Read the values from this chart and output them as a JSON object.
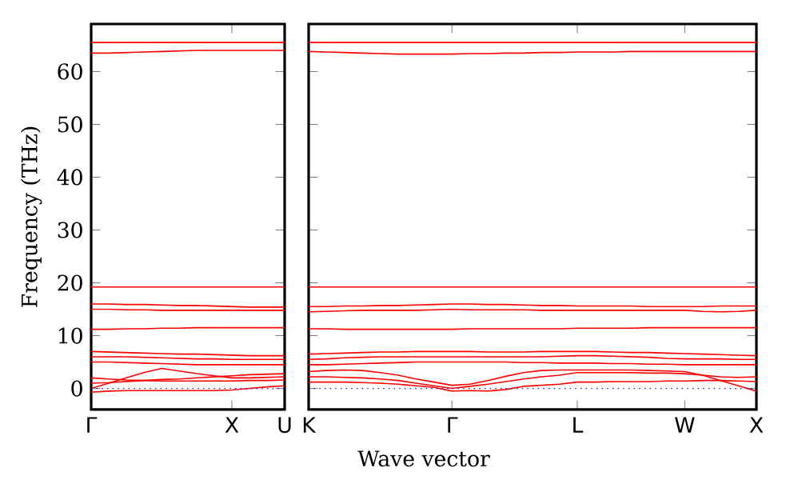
{
  "chart_data": [
    {
      "type": "line",
      "ylabel": "Frequency (THz)",
      "categories": [
        "Γ",
        null,
        null,
        null,
        null,
        null,
        null,
        null,
        "X",
        null,
        null,
        "U"
      ],
      "ylim": [
        -4,
        69
      ],
      "yticks": [
        0,
        10,
        20,
        30,
        40,
        50,
        60
      ],
      "ref_lines": [
        {
          "axis": "y",
          "value": 0,
          "color": "#0000ff",
          "line_style": "dotted"
        }
      ],
      "series": [
        {
          "color": "#ff0000",
          "values": [
            65.5,
            65.5,
            65.5,
            65.5,
            65.5,
            65.5,
            65.5,
            65.5,
            65.5,
            65.5,
            65.5,
            65.5
          ]
        },
        {
          "color": "#ff0000",
          "values": [
            63.5,
            63.5,
            63.6,
            63.7,
            63.8,
            63.9,
            64,
            64,
            64,
            64,
            64,
            64
          ]
        },
        {
          "color": "#ff0000",
          "values": [
            19.2,
            19.2,
            19.2,
            19.2,
            19.2,
            19.2,
            19.2,
            19.2,
            19.2,
            19.2,
            19.2,
            19.2
          ]
        },
        {
          "color": "#ff0000",
          "values": [
            16,
            16,
            15.9,
            15.9,
            15.8,
            15.7,
            15.7,
            15.6,
            15.5,
            15.4,
            15.4,
            15.4
          ]
        },
        {
          "color": "#ff0000",
          "values": [
            15,
            15,
            14.9,
            14.9,
            14.8,
            14.8,
            14.8,
            14.8,
            14.8,
            14.8,
            14.8,
            14.8
          ]
        },
        {
          "color": "#ff0000",
          "values": [
            11.2,
            11.2,
            11.3,
            11.3,
            11.4,
            11.4,
            11.5,
            11.5,
            11.5,
            11.5,
            11.5,
            11.5
          ]
        },
        {
          "color": "#ff0000",
          "values": [
            7,
            6.9,
            6.8,
            6.7,
            6.6,
            6.5,
            6.5,
            6.4,
            6.3,
            6.2,
            6.2,
            6.2
          ]
        },
        {
          "color": "#ff0000",
          "values": [
            6,
            6,
            6,
            5.9,
            5.8,
            5.7,
            5.6,
            5.6,
            5.5,
            5.5,
            5.5,
            5.5
          ]
        },
        {
          "color": "#ff0000",
          "values": [
            5,
            5,
            4.9,
            4.8,
            4.7,
            4.6,
            4.5,
            4.5,
            4.5,
            4.5,
            4.5,
            4.5
          ]
        },
        {
          "color": "#ff0000",
          "values": [
            0,
            1,
            2,
            3,
            3.8,
            3.3,
            2.8,
            2.4,
            2,
            2,
            2.1,
            2.2
          ]
        },
        {
          "color": "#ff0000",
          "values": [
            1,
            1.1,
            1.3,
            1.5,
            1.7,
            1.8,
            2,
            2.2,
            2.4,
            2.6,
            2.7,
            2.8
          ]
        },
        {
          "color": "#ff0000",
          "values": [
            -0.7,
            -0.5,
            -0.4,
            -0.4,
            -0.4,
            -0.4,
            -0.4,
            -0.4,
            -0.3,
            0,
            0.3,
            0.5
          ]
        },
        {
          "color": "#ff0000",
          "values": [
            2,
            1.8,
            1.6,
            1.5,
            1.4,
            1.4,
            1.4,
            1.4,
            1.4,
            1.5,
            1.5,
            1.6
          ]
        }
      ]
    },
    {
      "type": "line",
      "xlabel": "Wave vector",
      "tick_labels": "x",
      "categories": [
        "K",
        null,
        null,
        null,
        null,
        null,
        null,
        null,
        "Γ",
        null,
        null,
        null,
        null,
        null,
        null,
        "L",
        null,
        null,
        null,
        null,
        null,
        "W",
        null,
        null,
        null,
        "X"
      ],
      "ylim": [
        -4,
        69
      ],
      "yticks": [
        0,
        10,
        20,
        30,
        40,
        50,
        60
      ],
      "ref_lines": [
        {
          "axis": "y",
          "value": 0,
          "color": "#0000ff",
          "line_style": "dotted"
        }
      ],
      "series": [
        {
          "color": "#ff0000",
          "values": [
            65.5,
            65.5,
            65.5,
            65.5,
            65.5,
            65.5,
            65.5,
            65.5,
            65.5,
            65.5,
            65.5,
            65.5,
            65.5,
            65.5,
            65.5,
            65.5,
            65.5,
            65.5,
            65.5,
            65.5,
            65.5,
            65.5,
            65.5,
            65.5,
            65.5,
            65.5
          ]
        },
        {
          "color": "#ff0000",
          "values": [
            63.8,
            63.7,
            63.6,
            63.5,
            63.4,
            63.3,
            63.3,
            63.3,
            63.3,
            63.4,
            63.4,
            63.5,
            63.5,
            63.6,
            63.6,
            63.7,
            63.7,
            63.7,
            63.8,
            63.8,
            63.8,
            63.8,
            63.8,
            63.8,
            63.8,
            63.8
          ]
        },
        {
          "color": "#ff0000",
          "values": [
            19.2,
            19.2,
            19.2,
            19.2,
            19.2,
            19.2,
            19.2,
            19.2,
            19.2,
            19.2,
            19.2,
            19.2,
            19.2,
            19.2,
            19.2,
            19.2,
            19.2,
            19.2,
            19.2,
            19.2,
            19.2,
            19.2,
            19.2,
            19.2,
            19.2,
            19.2
          ]
        },
        {
          "color": "#ff0000",
          "values": [
            15.5,
            15.5,
            15.6,
            15.6,
            15.7,
            15.7,
            15.8,
            15.9,
            16,
            16,
            15.9,
            15.9,
            15.8,
            15.7,
            15.7,
            15.6,
            15.6,
            15.6,
            15.6,
            15.5,
            15.5,
            15.5,
            15.5,
            15.6,
            15.6,
            15.6
          ]
        },
        {
          "color": "#ff0000",
          "values": [
            14.5,
            14.6,
            14.7,
            14.8,
            14.8,
            14.8,
            14.8,
            14.9,
            15,
            14.9,
            14.9,
            14.9,
            14.9,
            14.8,
            14.8,
            14.8,
            14.8,
            14.8,
            14.8,
            14.8,
            14.8,
            14.8,
            14.6,
            14.5,
            14.6,
            14.8
          ]
        },
        {
          "color": "#ff0000",
          "values": [
            11.3,
            11.3,
            11.2,
            11.2,
            11.2,
            11.2,
            11.2,
            11.2,
            11.2,
            11.3,
            11.3,
            11.3,
            11.3,
            11.3,
            11.3,
            11.4,
            11.4,
            11.4,
            11.4,
            11.5,
            11.5,
            11.5,
            11.5,
            11.5,
            11.5,
            11.5
          ]
        },
        {
          "color": "#ff0000",
          "values": [
            6.5,
            6.6,
            6.7,
            6.8,
            6.9,
            6.9,
            7,
            7,
            7,
            7,
            6.9,
            6.9,
            6.9,
            7,
            7,
            7,
            7,
            6.9,
            6.8,
            6.8,
            6.7,
            6.6,
            6.5,
            6.4,
            6.3,
            6.2
          ]
        },
        {
          "color": "#ff0000",
          "values": [
            5.5,
            5.6,
            5.8,
            5.9,
            6,
            6,
            6,
            6,
            6,
            6,
            6,
            6,
            6,
            6,
            6.1,
            6.2,
            6.2,
            6.1,
            6,
            5.9,
            5.7,
            5.6,
            5.6,
            5.6,
            5.5,
            5.5
          ]
        },
        {
          "color": "#ff0000",
          "values": [
            4.5,
            4.5,
            4.6,
            4.7,
            4.8,
            4.9,
            5,
            5,
            5,
            5,
            5,
            5,
            4.9,
            4.9,
            4.8,
            4.8,
            4.8,
            4.7,
            4.7,
            4.6,
            4.6,
            4.5,
            4.5,
            4.5,
            4.5,
            4.5
          ]
        },
        {
          "color": "#ff0000",
          "values": [
            3.2,
            3.4,
            3.5,
            3.4,
            3,
            2.5,
            1.8,
            1.2,
            0.6,
            0.8,
            1.5,
            2.3,
            3,
            3.4,
            3.5,
            3.5,
            3.5,
            3.5,
            3.5,
            3.4,
            3.3,
            3.2,
            2.5,
            1.5,
            0.5,
            -0.5
          ]
        },
        {
          "color": "#ff0000",
          "values": [
            2.2,
            2.2,
            2.1,
            2,
            1.8,
            1.5,
            1,
            0.5,
            0,
            0.4,
            0.8,
            1.3,
            1.8,
            2.2,
            2.5,
            3,
            3,
            3,
            3,
            2.9,
            2.9,
            2.8,
            2.5,
            2.2,
            2.1,
            2.2
          ]
        },
        {
          "color": "#ff0000",
          "values": [
            1.2,
            1.2,
            1.2,
            1.1,
            1,
            0.8,
            0.5,
            0.2,
            -0.5,
            -0.4,
            -0.5,
            -0.2,
            0.4,
            0.6,
            0.8,
            1.2,
            1.2,
            1.3,
            1.3,
            1.3,
            1.4,
            1.4,
            1.5,
            1.5,
            1.4,
            1.3
          ]
        }
      ]
    }
  ]
}
